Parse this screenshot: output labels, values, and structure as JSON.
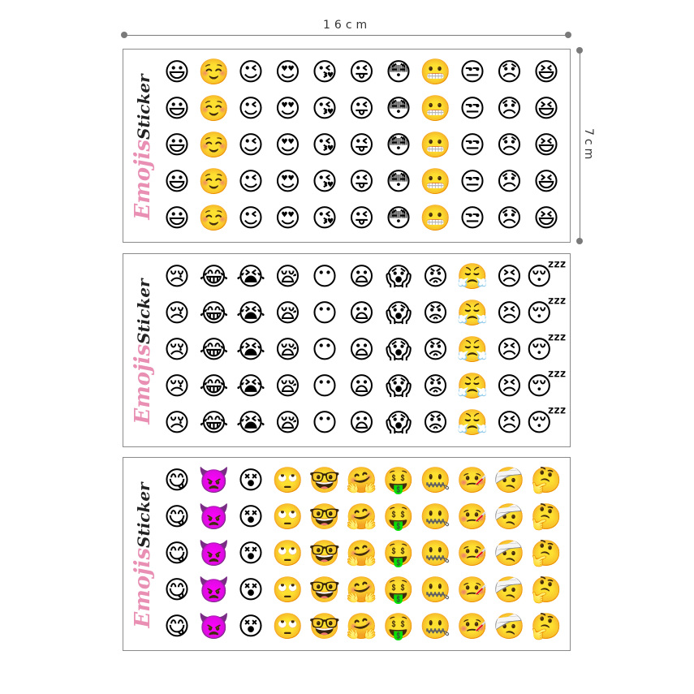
{
  "dimensions": {
    "width_label": "16cm",
    "height_label": "7cm"
  },
  "brand": {
    "word1": "Emojis",
    "word2": "Sticker"
  },
  "sheets": [
    {
      "emojis": [
        "😃",
        "☺️",
        "😉",
        "😍",
        "😘",
        "😜",
        "😳",
        "😬",
        "😒",
        "😞",
        "😆"
      ]
    },
    {
      "emojis": [
        "😢",
        "😂",
        "😭",
        "😪",
        "😶",
        "😦",
        "😱",
        "😡",
        "😤",
        "😣",
        "😴"
      ]
    },
    {
      "emojis": [
        "😋",
        "👿",
        "😵",
        "🙄",
        "🤓",
        "🤗",
        "🤑",
        "🤐",
        "🤒",
        "🤕",
        "🤔"
      ]
    }
  ]
}
